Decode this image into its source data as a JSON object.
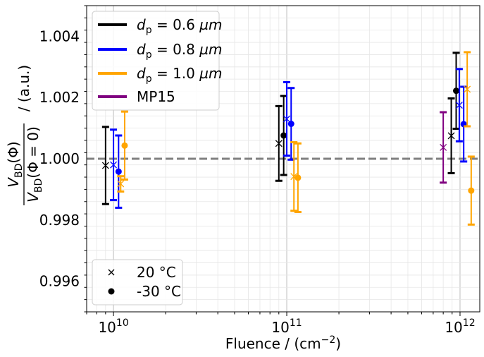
{
  "chart_data": {
    "type": "scatter",
    "x_scale": "log",
    "xlim": [
      7000000000.0,
      1300000000000.0
    ],
    "ylim": [
      0.995,
      1.005
    ],
    "xlabel_main": "Fluence / (cm",
    "xlabel_sup": "−2",
    "xlabel_end": ")",
    "ylabel_num": "V",
    "ylabel_num_sub": "BD",
    "ylabel_num_arg": "(Φ)",
    "ylabel_den": "V",
    "ylabel_den_sub": "BD",
    "ylabel_den_arg": "(Φ = 0)",
    "ylabel_unit": "/ (a.u.)",
    "grid": true,
    "reference_line": {
      "y": 1.0,
      "style": "dashed",
      "color": "#808080"
    },
    "x_ticks": [
      {
        "value": 10000000000.0,
        "base": "10",
        "exp": "10"
      },
      {
        "value": 100000000000.0,
        "base": "10",
        "exp": "11"
      },
      {
        "value": 1000000000000.0,
        "base": "10",
        "exp": "12"
      }
    ],
    "y_ticks": [
      {
        "value": 0.996,
        "label": "0.996"
      },
      {
        "value": 0.998,
        "label": "0.998"
      },
      {
        "value": 1.0,
        "label": "1.000"
      },
      {
        "value": 1.002,
        "label": "1.002"
      },
      {
        "value": 1.004,
        "label": "1.004"
      }
    ],
    "series": [
      {
        "name": "d_p = 0.6 µm",
        "legend_prefix": "d",
        "legend_sub": "p",
        "legend_suffix": " = 0.6 ",
        "legend_unit": "µm",
        "color": "#000000",
        "points": [
          {
            "x": 9000000000.0,
            "y": 0.99978,
            "err": 0.00126,
            "marker": "x"
          },
          {
            "x": 90000000000.0,
            "y": 1.0005,
            "err": 0.00122,
            "marker": "x"
          },
          {
            "x": 96000000000.0,
            "y": 1.00076,
            "err": 0.00129,
            "marker": "o"
          },
          {
            "x": 890000000000.0,
            "y": 1.00075,
            "err": 0.00122,
            "marker": "x"
          },
          {
            "x": 950000000000.0,
            "y": 1.00222,
            "err": 0.00124,
            "marker": "o"
          }
        ]
      },
      {
        "name": "d_p = 0.8 µm",
        "legend_prefix": "d",
        "legend_sub": "p",
        "legend_suffix": " = 0.8 ",
        "legend_unit": "µm",
        "color": "#0000ff",
        "points": [
          {
            "x": 10000000000.0,
            "y": 0.9998,
            "err": 0.00115,
            "marker": "x"
          },
          {
            "x": 10700000000.0,
            "y": 0.99958,
            "err": 0.00118,
            "marker": "o"
          },
          {
            "x": 100000000000.0,
            "y": 1.0013,
            "err": 0.0012,
            "marker": "x"
          },
          {
            "x": 106000000000.0,
            "y": 1.00114,
            "err": 0.00117,
            "marker": "o"
          },
          {
            "x": 990000000000.0,
            "y": 1.00175,
            "err": 0.00118,
            "marker": "x"
          },
          {
            "x": 1050000000000.0,
            "y": 1.00113,
            "err": 0.00122,
            "marker": "o"
          }
        ]
      },
      {
        "name": "d_p = 1.0 µm",
        "legend_prefix": "d",
        "legend_sub": "p",
        "legend_suffix": " = 1.0 ",
        "legend_unit": "µm",
        "color": "#ffa500",
        "points": [
          {
            "x": 11000000000.0,
            "y": 0.99918,
            "err": 0.00025,
            "marker": "x"
          },
          {
            "x": 11600000000.0,
            "y": 1.00043,
            "err": 0.00111,
            "marker": "o"
          },
          {
            "x": 110000000000.0,
            "y": 0.99942,
            "err": 0.00112,
            "marker": "x"
          },
          {
            "x": 116000000000.0,
            "y": 0.99938,
            "err": 0.00112,
            "marker": "o"
          },
          {
            "x": 1100000000000.0,
            "y": 1.00227,
            "err": 0.00121,
            "marker": "x"
          },
          {
            "x": 1160000000000.0,
            "y": 0.99896,
            "err": 0.00111,
            "marker": "o"
          }
        ]
      },
      {
        "name": "MP15",
        "legend_prefix": "MP15",
        "legend_sub": "",
        "legend_suffix": "",
        "legend_unit": "",
        "color": "#800080",
        "points": [
          {
            "x": 800000000000.0,
            "y": 1.00037,
            "err": 0.00115,
            "marker": "x"
          }
        ]
      }
    ],
    "marker_legend": [
      {
        "marker": "x",
        "label": "20 °C"
      },
      {
        "marker": "o",
        "label": "-30 °C"
      }
    ],
    "legend_position": "upper-left",
    "marker_legend_position": "lower-left"
  }
}
